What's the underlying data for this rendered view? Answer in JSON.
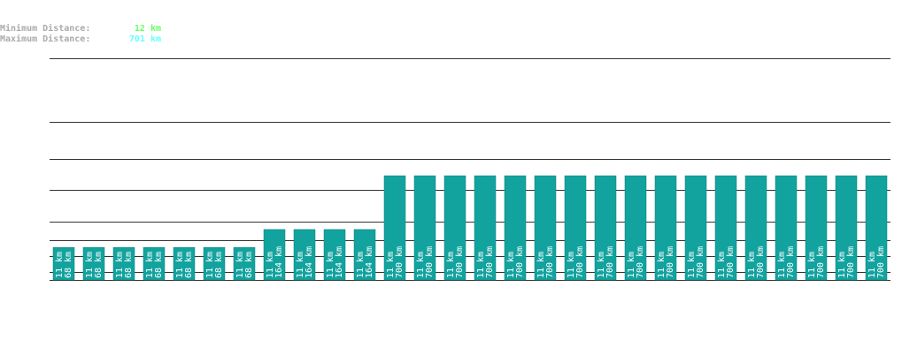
{
  "header": {
    "min_label": "Minimum Distance:",
    "min_value": "12 km",
    "max_label": "Maximum Distance:",
    "max_value": "701 km"
  },
  "chart_data": {
    "type": "bar",
    "scale": "sqrt",
    "color": "#13a39f",
    "ylim": [
      0,
      700
    ],
    "values": [
      68,
      68,
      68,
      68,
      68,
      68,
      68,
      164,
      164,
      164,
      164,
      700,
      700,
      700,
      700,
      700,
      700,
      700,
      700,
      700,
      700,
      700,
      700,
      700,
      700,
      700,
      700,
      700
    ],
    "value_labels": [
      "68 km",
      "68 km",
      "68 km",
      "68 km",
      "68 km",
      "68 km",
      "68 km",
      "164 km",
      "164 km",
      "164 km",
      "164 km",
      "700 km",
      "700 km",
      "700 km",
      "700 km",
      "700 km",
      "700 km",
      "700 km",
      "700 km",
      "700 km",
      "700 km",
      "700 km",
      "700 km",
      "700 km",
      "700 km",
      "700 km",
      "700 km",
      "700 km"
    ],
    "start_labels": [
      "11 km",
      "11 km",
      "11 km",
      "11 km",
      "11 km",
      "11 km",
      "11 km",
      "11 km",
      "11 km",
      "11 km",
      "11 km",
      "11 km",
      "11 km",
      "11 km",
      "11 km",
      "11 km",
      "11 km",
      "11 km",
      "11 km",
      "11 km",
      "11 km",
      "11 km",
      "11 km",
      "11 km",
      "11 km",
      "11 km",
      "11 km",
      "11 km"
    ]
  }
}
